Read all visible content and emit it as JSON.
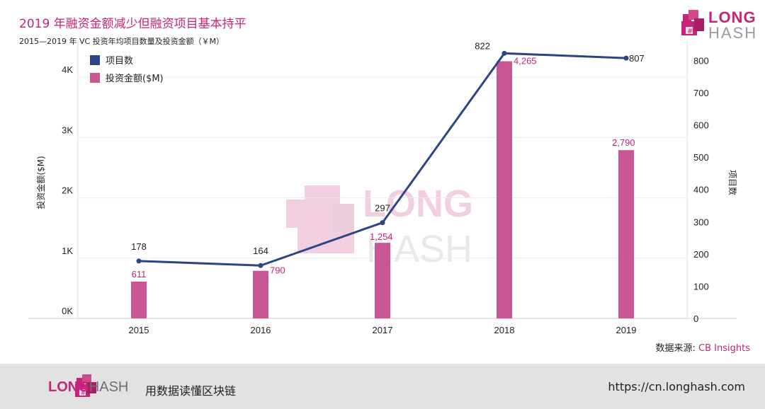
{
  "header": {
    "title": "2019 年融资金额减少但融资项目基本持平",
    "subtitle": "2015—2019 年 VC 投资年均项目数量及投资金额（￥M）"
  },
  "brand": {
    "long": "LONG",
    "hash": "HASH",
    "slogan": "用数据读懂区块链",
    "url": "https://cn.longhash.com",
    "accent_color": "#c5247a",
    "line_color": "#2e4583",
    "bar_color": "#c85694"
  },
  "source": {
    "label": "数据来源:",
    "value": "CB Insights"
  },
  "chart_data": {
    "type": "bar",
    "categories": [
      "2015",
      "2016",
      "2017",
      "2018",
      "2019"
    ],
    "series": [
      {
        "name": "投资金额($M)",
        "type": "bar",
        "axis": "left",
        "values": [
          611,
          790,
          1254,
          4265,
          2790
        ],
        "labels": [
          "611",
          "790",
          "1,254",
          "4,265",
          "2,790"
        ]
      },
      {
        "name": "项目数",
        "type": "line",
        "axis": "right",
        "values": [
          178,
          164,
          297,
          822,
          807
        ],
        "labels": [
          "178",
          "164",
          "297",
          "822",
          "807"
        ]
      }
    ],
    "y_left": {
      "label": "投资金额($M)",
      "ylim": [
        0,
        4600
      ],
      "ticks": [
        0,
        1000,
        2000,
        3000,
        4000
      ],
      "tick_labels": [
        "0K",
        "1K",
        "2K",
        "3K",
        "4K"
      ]
    },
    "y_right": {
      "label": "项目数",
      "ylim": [
        0,
        860
      ],
      "ticks": [
        0,
        100,
        200,
        300,
        400,
        500,
        600,
        700,
        800
      ],
      "tick_labels": [
        "0",
        "100",
        "200",
        "300",
        "400",
        "500",
        "600",
        "700",
        "800"
      ]
    },
    "grid": true,
    "legend_position": "top-left"
  }
}
